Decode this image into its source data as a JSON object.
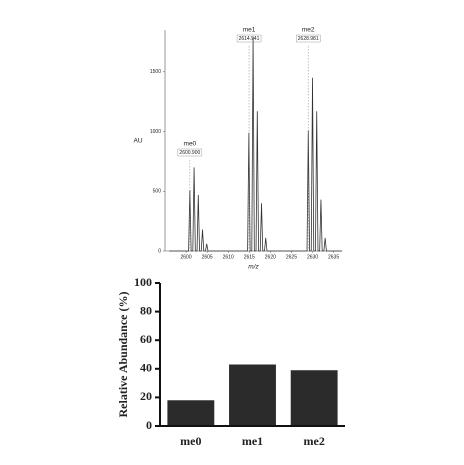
{
  "chart_data": [
    {
      "type": "line",
      "y_label": "AU",
      "x_label": "m/z",
      "color": "#333333",
      "x": [
        2596,
        2600.6,
        2600.9,
        2601.2,
        2601.6,
        2601.9,
        2602.2,
        2602.6,
        2602.9,
        2603.2,
        2603.6,
        2603.9,
        2604.2,
        2604.6,
        2604.9,
        2605.2,
        2614.6,
        2614.9,
        2615.2,
        2615.6,
        2615.9,
        2616.2,
        2616.6,
        2616.9,
        2617.2,
        2617.6,
        2617.9,
        2618.2,
        2618.6,
        2618.9,
        2619.2,
        2628.7,
        2629.0,
        2629.3,
        2629.7,
        2630.0,
        2630.3,
        2630.7,
        2631.0,
        2631.3,
        2631.7,
        2632.0,
        2632.3,
        2632.7,
        2633.0,
        2633.3,
        2637
      ],
      "values": [
        0,
        0,
        510,
        0,
        0,
        700,
        0,
        0,
        470,
        0,
        0,
        180,
        0,
        0,
        60,
        0,
        0,
        990,
        0,
        0,
        1790,
        0,
        0,
        1170,
        0,
        0,
        400,
        0,
        0,
        110,
        0,
        0,
        1010,
        0,
        0,
        1450,
        0,
        0,
        1170,
        0,
        0,
        430,
        0,
        0,
        110,
        0,
        0
      ],
      "annotations": [
        {
          "name": "me0",
          "label": "2600.900",
          "x": 2600.9
        },
        {
          "name": "me1",
          "label": "2614.941",
          "x": 2614.941
        },
        {
          "name": "me2",
          "label": "2628.981",
          "x": 2628.981
        }
      ],
      "xlim": [
        2595,
        2637
      ],
      "xticks": [
        2600,
        2605,
        2610,
        2615,
        2620,
        2625,
        2630,
        2635
      ],
      "ylim": [
        0,
        1850
      ],
      "yticks": [
        0,
        500,
        1000,
        1500
      ]
    },
    {
      "type": "bar",
      "y_label": "Relative Abundance (%)",
      "color": "#2b2b2b",
      "categories": [
        "me0",
        "me1",
        "me2"
      ],
      "values": [
        18,
        43,
        39
      ],
      "ylim": [
        0,
        100
      ],
      "yticks": [
        0,
        20,
        40,
        60,
        80,
        100
      ]
    }
  ]
}
